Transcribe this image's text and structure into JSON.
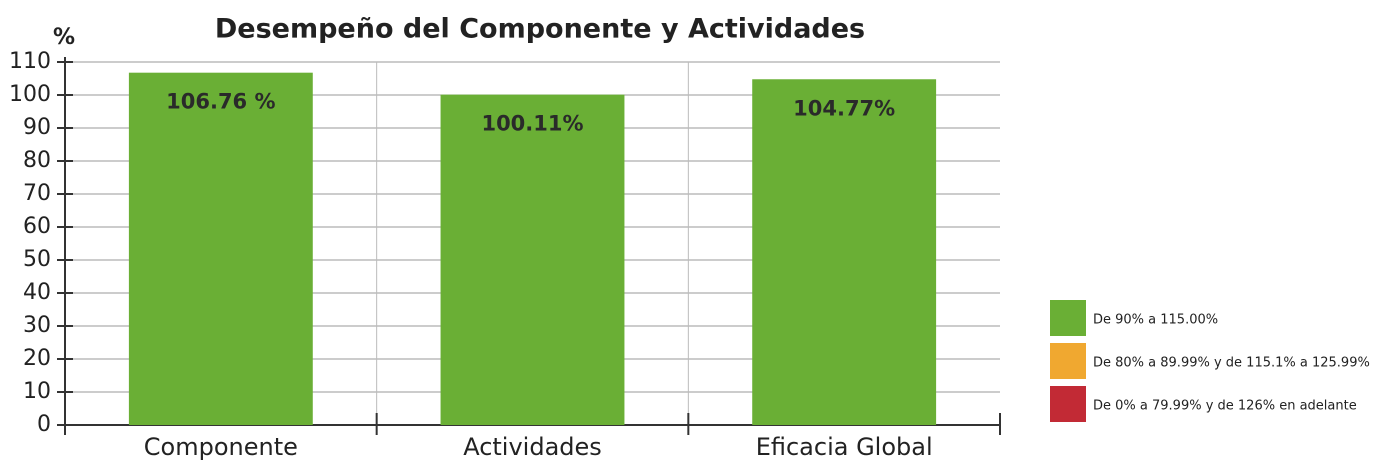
{
  "chart_data": {
    "type": "bar",
    "title": "Desempeño del Componente y Actividades",
    "ylabel": "%",
    "categories": [
      "Componente",
      "Actividades",
      "Eficacia Global"
    ],
    "values": [
      106.76,
      100.11,
      104.77
    ],
    "value_labels": [
      "106.76 %",
      "100.11%",
      "104.77%"
    ],
    "color": "#6aaf35",
    "ylim": [
      0,
      110
    ],
    "yticks": [
      0,
      10,
      20,
      30,
      40,
      50,
      60,
      70,
      80,
      90,
      100,
      110
    ],
    "grid": true,
    "legend": [
      {
        "label": "De 90% a 115.00%",
        "color": "#6aaf35"
      },
      {
        "label": "De 80% a 89.99% y de 115.1% a 125.99%",
        "color": "#f0a830"
      },
      {
        "label": "De 0% a 79.99% y de 126% en adelante",
        "color": "#c22a35"
      }
    ]
  }
}
